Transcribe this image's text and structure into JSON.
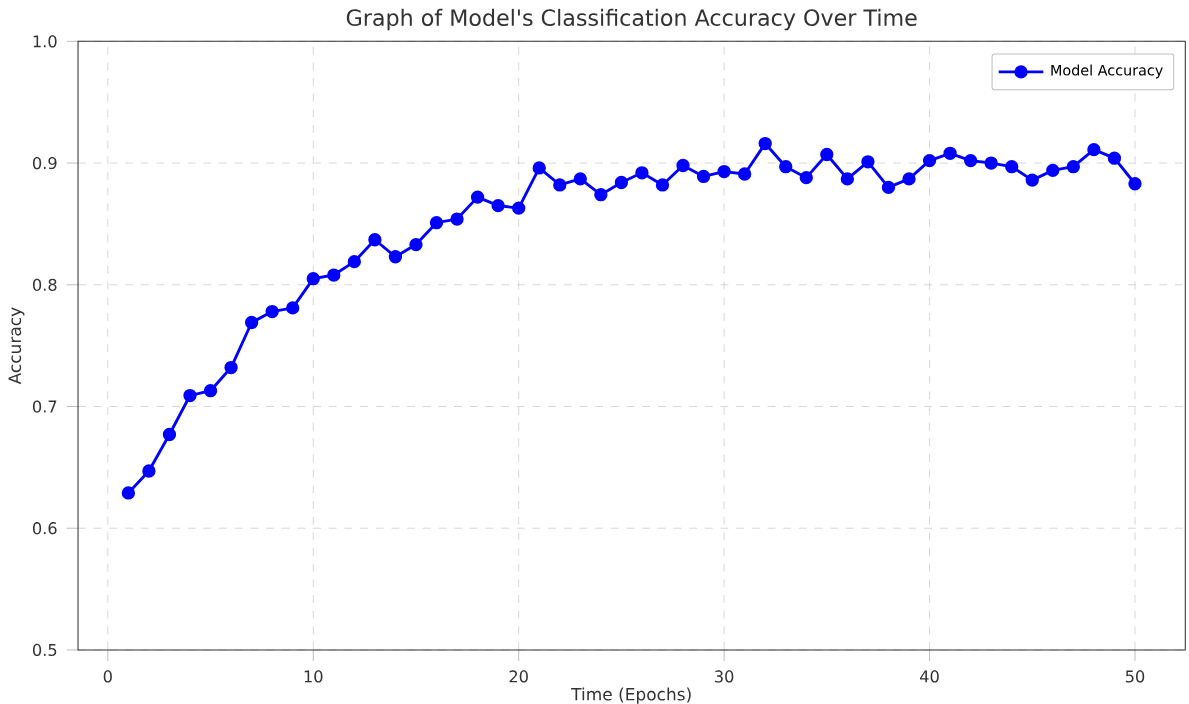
{
  "chart_data": {
    "type": "line",
    "title": "Graph of Model's Classification Accuracy Over Time",
    "xlabel": "Time (Epochs)",
    "ylabel": "Accuracy",
    "x": [
      1,
      2,
      3,
      4,
      5,
      6,
      7,
      8,
      9,
      10,
      11,
      12,
      13,
      14,
      15,
      16,
      17,
      18,
      19,
      20,
      21,
      22,
      23,
      24,
      25,
      26,
      27,
      28,
      29,
      30,
      31,
      32,
      33,
      34,
      35,
      36,
      37,
      38,
      39,
      40,
      41,
      42,
      43,
      44,
      45,
      46,
      47,
      48,
      49,
      50
    ],
    "series": [
      {
        "name": "Model Accuracy",
        "color": "#0000ff",
        "values": [
          0.629,
          0.647,
          0.677,
          0.709,
          0.713,
          0.732,
          0.769,
          0.778,
          0.781,
          0.805,
          0.808,
          0.819,
          0.837,
          0.823,
          0.833,
          0.851,
          0.854,
          0.872,
          0.865,
          0.863,
          0.896,
          0.882,
          0.887,
          0.874,
          0.884,
          0.892,
          0.882,
          0.898,
          0.889,
          0.893,
          0.891,
          0.916,
          0.897,
          0.888,
          0.907,
          0.887,
          0.901,
          0.88,
          0.887,
          0.902,
          0.908,
          0.902,
          0.9,
          0.897,
          0.886,
          0.894,
          0.897,
          0.911,
          0.904,
          0.883
        ]
      }
    ],
    "xlim": [
      -1.45,
      52.45
    ],
    "ylim": [
      0.5,
      1.0
    ],
    "xticks": [
      0,
      10,
      20,
      30,
      40,
      50
    ],
    "yticks": [
      {
        "value": 0.5,
        "label": "0.5"
      },
      {
        "value": 0.6,
        "label": "0.6"
      },
      {
        "value": 0.7,
        "label": "0.7"
      },
      {
        "value": 0.8,
        "label": "0.8"
      },
      {
        "value": 0.9,
        "label": "0.9"
      },
      {
        "value": 1.0,
        "label": "1.0"
      }
    ],
    "grid": true,
    "legend": "top right",
    "marker": "circle",
    "line_style": "solid"
  }
}
